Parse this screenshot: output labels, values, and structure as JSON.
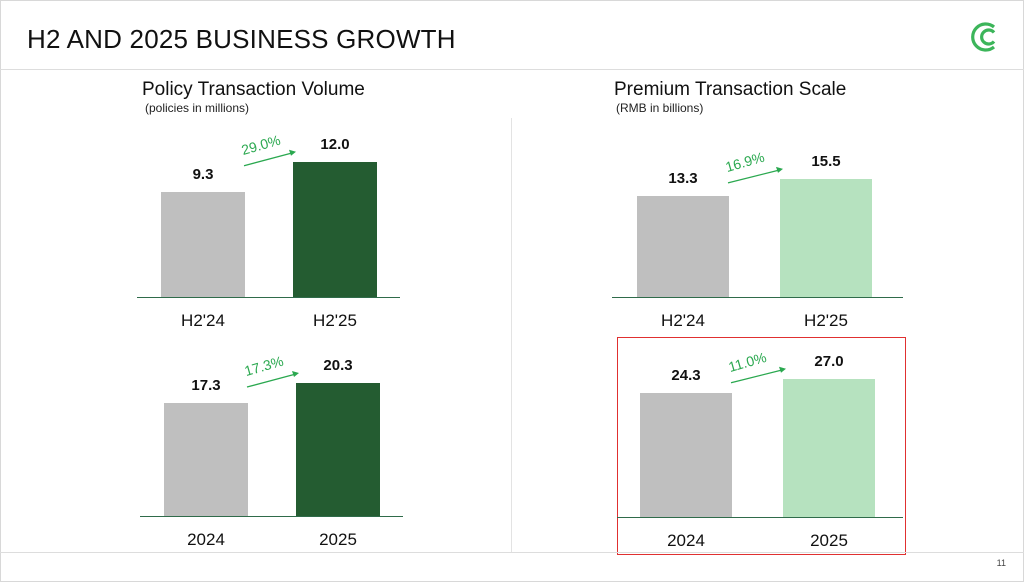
{
  "header": {
    "title": "H2 AND 2025 BUSINESS GROWTH",
    "logo_icon": "company-logo-double-c",
    "page_number": "11"
  },
  "colors": {
    "gray": "#bfbfbf",
    "dark_green": "#245c31",
    "light_green": "#b6e2bf",
    "growth": "#2aa84f",
    "highlight": "#e03030"
  },
  "sections": [
    {
      "title": "Policy Transaction Volume",
      "subtitle": "(policies in millions)"
    },
    {
      "title": "Premium Transaction Scale",
      "subtitle": "(RMB in billions)"
    }
  ],
  "chart_data": [
    {
      "type": "bar",
      "title": "Policy Transaction Volume",
      "unit": "policies in millions",
      "categories": [
        "H2'24",
        "H2'25"
      ],
      "values": [
        9.3,
        12.0
      ],
      "value_labels": [
        "9.3",
        "12.0"
      ],
      "growth": "29.0%",
      "colors": [
        "#bfbfbf",
        "#245c31"
      ]
    },
    {
      "type": "bar",
      "title": "Policy Transaction Volume",
      "unit": "policies in millions",
      "categories": [
        "2024",
        "2025"
      ],
      "values": [
        17.3,
        20.3
      ],
      "value_labels": [
        "17.3",
        "20.3"
      ],
      "growth": "17.3%",
      "colors": [
        "#bfbfbf",
        "#245c31"
      ]
    },
    {
      "type": "bar",
      "title": "Premium Transaction Scale",
      "unit": "RMB in billions",
      "categories": [
        "H2'24",
        "H2'25"
      ],
      "values": [
        13.3,
        15.5
      ],
      "value_labels": [
        "13.3",
        "15.5"
      ],
      "growth": "16.9%",
      "colors": [
        "#bfbfbf",
        "#b6e2bf"
      ]
    },
    {
      "type": "bar",
      "title": "Premium Transaction Scale",
      "unit": "RMB in billions",
      "categories": [
        "2024",
        "2025"
      ],
      "values": [
        24.3,
        27.0
      ],
      "value_labels": [
        "24.3",
        "27.0"
      ],
      "growth": "11.0%",
      "colors": [
        "#bfbfbf",
        "#b6e2bf"
      ],
      "highlighted": true
    }
  ]
}
